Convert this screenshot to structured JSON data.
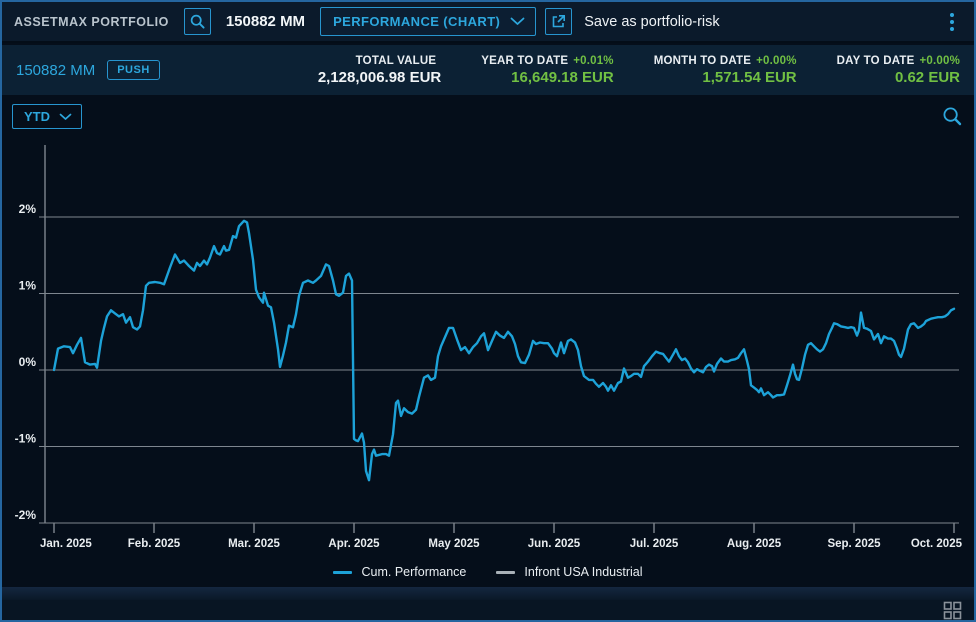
{
  "top_bar": {
    "app_title": "ASSETMAX PORTFOLIO",
    "portfolio_id": "150882 MM",
    "view_selector_value": "PERFORMANCE (CHART)",
    "action_text": "Save as portfolio-risk"
  },
  "summary_bar": {
    "portfolio_name": "150882 MM",
    "push_badge_label": "PUSH",
    "stats": [
      {
        "label": "TOTAL VALUE",
        "pct": "",
        "value": "2,128,006.98 EUR",
        "value_color": "#f2f5f7"
      },
      {
        "label": "YEAR TO DATE",
        "pct": "+0.01%",
        "value": "16,649.18 EUR",
        "value_color": "#71c043"
      },
      {
        "label": "MONTH TO DATE",
        "pct": "+0.00%",
        "value": "1,571.54 EUR",
        "value_color": "#71c043"
      },
      {
        "label": "DAY TO DATE",
        "pct": "+0.00%",
        "value": "0.62 EUR",
        "value_color": "#71c043"
      }
    ]
  },
  "chart_toolbar": {
    "range_selector_value": "YTD"
  },
  "colors": {
    "accent_cyan": "#2da7dd",
    "line_cyan": "#1da2d8",
    "positive_green": "#71c043",
    "grid_gray": "#7e868f",
    "tick_text": "#e9edf0"
  },
  "chart_data": {
    "type": "line",
    "title": "",
    "xlabel": "",
    "ylabel": "",
    "x_unit": "month (fraction, 0 = Jan 2025)",
    "y_unit": "percent",
    "x_tick_labels": [
      "Jan. 2025",
      "Feb. 2025",
      "Mar. 2025",
      "Apr. 2025",
      "May 2025",
      "Jun. 2025",
      "Jul. 2025",
      "Aug. 2025",
      "Sep. 2025",
      "Oct. 2025"
    ],
    "y_ticks": [
      2,
      1,
      0,
      -1,
      -2
    ],
    "y_tick_labels": [
      "2%",
      "1%",
      "0%",
      "-1%",
      "-2%"
    ],
    "ylim": [
      -2,
      2.94
    ],
    "xlim": [
      0,
      9.05
    ],
    "grid": true,
    "legend_position": "bottom",
    "series": [
      {
        "name": "Cum. Performance",
        "color": "#1da2d8",
        "points": [
          [
            0.0,
            0.0
          ],
          [
            0.04,
            0.28
          ],
          [
            0.1,
            0.31
          ],
          [
            0.16,
            0.3
          ],
          [
            0.19,
            0.22
          ],
          [
            0.23,
            0.33
          ],
          [
            0.27,
            0.42
          ],
          [
            0.31,
            0.1
          ],
          [
            0.36,
            0.07
          ],
          [
            0.41,
            0.08
          ],
          [
            0.43,
            0.03
          ],
          [
            0.47,
            0.38
          ],
          [
            0.5,
            0.55
          ],
          [
            0.53,
            0.7
          ],
          [
            0.57,
            0.78
          ],
          [
            0.61,
            0.74
          ],
          [
            0.65,
            0.7
          ],
          [
            0.69,
            0.73
          ],
          [
            0.72,
            0.62
          ],
          [
            0.76,
            0.69
          ],
          [
            0.79,
            0.56
          ],
          [
            0.83,
            0.53
          ],
          [
            0.86,
            0.57
          ],
          [
            0.89,
            0.78
          ],
          [
            0.92,
            1.1
          ],
          [
            0.95,
            1.14
          ],
          [
            1.01,
            1.15
          ],
          [
            1.06,
            1.14
          ],
          [
            1.1,
            1.12
          ],
          [
            1.16,
            1.34
          ],
          [
            1.21,
            1.51
          ],
          [
            1.26,
            1.4
          ],
          [
            1.3,
            1.43
          ],
          [
            1.35,
            1.36
          ],
          [
            1.4,
            1.3
          ],
          [
            1.43,
            1.4
          ],
          [
            1.46,
            1.36
          ],
          [
            1.5,
            1.43
          ],
          [
            1.53,
            1.38
          ],
          [
            1.56,
            1.47
          ],
          [
            1.6,
            1.62
          ],
          [
            1.63,
            1.53
          ],
          [
            1.66,
            1.51
          ],
          [
            1.7,
            1.62
          ],
          [
            1.72,
            1.56
          ],
          [
            1.75,
            1.57
          ],
          [
            1.79,
            1.75
          ],
          [
            1.82,
            1.73
          ],
          [
            1.85,
            1.88
          ],
          [
            1.9,
            1.95
          ],
          [
            1.93,
            1.93
          ],
          [
            1.95,
            1.79
          ],
          [
            1.99,
            1.44
          ],
          [
            2.02,
            1.05
          ],
          [
            2.05,
            0.95
          ],
          [
            2.09,
            0.88
          ],
          [
            2.1,
            1.01
          ],
          [
            2.14,
            0.84
          ],
          [
            2.17,
            0.82
          ],
          [
            2.2,
            0.62
          ],
          [
            2.24,
            0.27
          ],
          [
            2.26,
            0.04
          ],
          [
            2.29,
            0.19
          ],
          [
            2.32,
            0.36
          ],
          [
            2.35,
            0.58
          ],
          [
            2.39,
            0.56
          ],
          [
            2.42,
            0.73
          ],
          [
            2.45,
            0.97
          ],
          [
            2.49,
            1.14
          ],
          [
            2.54,
            1.17
          ],
          [
            2.59,
            1.14
          ],
          [
            2.62,
            1.17
          ],
          [
            2.67,
            1.23
          ],
          [
            2.72,
            1.38
          ],
          [
            2.75,
            1.36
          ],
          [
            2.79,
            1.17
          ],
          [
            2.82,
            0.99
          ],
          [
            2.85,
            0.97
          ],
          [
            2.89,
            1.01
          ],
          [
            2.92,
            1.23
          ],
          [
            2.95,
            1.26
          ],
          [
            2.98,
            1.17
          ],
          [
            3.0,
            -0.9
          ],
          [
            3.02,
            -0.92
          ],
          [
            3.04,
            -0.93
          ],
          [
            3.08,
            -0.83
          ],
          [
            3.1,
            -0.95
          ],
          [
            3.12,
            -1.32
          ],
          [
            3.15,
            -1.44
          ],
          [
            3.18,
            -1.1
          ],
          [
            3.2,
            -1.04
          ],
          [
            3.22,
            -1.12
          ],
          [
            3.28,
            -1.1
          ],
          [
            3.32,
            -1.1
          ],
          [
            3.35,
            -1.12
          ],
          [
            3.39,
            -0.84
          ],
          [
            3.42,
            -0.43
          ],
          [
            3.44,
            -0.4
          ],
          [
            3.47,
            -0.6
          ],
          [
            3.5,
            -0.5
          ],
          [
            3.54,
            -0.55
          ],
          [
            3.58,
            -0.57
          ],
          [
            3.62,
            -0.52
          ],
          [
            3.65,
            -0.35
          ],
          [
            3.7,
            -0.1
          ],
          [
            3.74,
            -0.07
          ],
          [
            3.77,
            -0.13
          ],
          [
            3.81,
            -0.1
          ],
          [
            3.84,
            0.18
          ],
          [
            3.87,
            0.31
          ],
          [
            3.91,
            0.43
          ],
          [
            3.95,
            0.55
          ],
          [
            3.99,
            0.55
          ],
          [
            4.03,
            0.4
          ],
          [
            4.07,
            0.26
          ],
          [
            4.11,
            0.3
          ],
          [
            4.15,
            0.22
          ],
          [
            4.19,
            0.3
          ],
          [
            4.23,
            0.35
          ],
          [
            4.27,
            0.44
          ],
          [
            4.3,
            0.48
          ],
          [
            4.34,
            0.26
          ],
          [
            4.38,
            0.38
          ],
          [
            4.42,
            0.5
          ],
          [
            4.46,
            0.45
          ],
          [
            4.5,
            0.42
          ],
          [
            4.54,
            0.5
          ],
          [
            4.58,
            0.44
          ],
          [
            4.61,
            0.34
          ],
          [
            4.64,
            0.18
          ],
          [
            4.67,
            0.1
          ],
          [
            4.71,
            0.09
          ],
          [
            4.75,
            0.2
          ],
          [
            4.79,
            0.38
          ],
          [
            4.82,
            0.34
          ],
          [
            4.86,
            0.36
          ],
          [
            4.9,
            0.35
          ],
          [
            4.94,
            0.35
          ],
          [
            4.98,
            0.28
          ],
          [
            5.0,
            0.22
          ],
          [
            5.03,
            0.18
          ],
          [
            5.07,
            0.36
          ],
          [
            5.1,
            0.22
          ],
          [
            5.14,
            0.38
          ],
          [
            5.17,
            0.4
          ],
          [
            5.21,
            0.36
          ],
          [
            5.24,
            0.26
          ],
          [
            5.27,
            0.05
          ],
          [
            5.3,
            -0.08
          ],
          [
            5.35,
            -0.13
          ],
          [
            5.39,
            -0.13
          ],
          [
            5.42,
            -0.18
          ],
          [
            5.45,
            -0.22
          ],
          [
            5.49,
            -0.17
          ],
          [
            5.52,
            -0.22
          ],
          [
            5.54,
            -0.27
          ],
          [
            5.57,
            -0.2
          ],
          [
            5.6,
            -0.27
          ],
          [
            5.64,
            -0.17
          ],
          [
            5.67,
            -0.15
          ],
          [
            5.7,
            0.02
          ],
          [
            5.74,
            -0.1
          ],
          [
            5.77,
            -0.08
          ],
          [
            5.8,
            -0.05
          ],
          [
            5.84,
            -0.05
          ],
          [
            5.87,
            -0.09
          ],
          [
            5.9,
            0.05
          ],
          [
            5.94,
            0.11
          ],
          [
            5.98,
            0.18
          ],
          [
            6.02,
            0.24
          ],
          [
            6.06,
            0.22
          ],
          [
            6.09,
            0.21
          ],
          [
            6.12,
            0.16
          ],
          [
            6.15,
            0.11
          ],
          [
            6.19,
            0.2
          ],
          [
            6.22,
            0.27
          ],
          [
            6.25,
            0.18
          ],
          [
            6.28,
            0.13
          ],
          [
            6.31,
            0.15
          ],
          [
            6.34,
            0.1
          ],
          [
            6.37,
            0.02
          ],
          [
            6.4,
            -0.03
          ],
          [
            6.43,
            0.01
          ],
          [
            6.46,
            -0.01
          ],
          [
            6.49,
            -0.03
          ],
          [
            6.52,
            0.04
          ],
          [
            6.55,
            0.07
          ],
          [
            6.58,
            0.05
          ],
          [
            6.6,
            -0.02
          ],
          [
            6.63,
            0.08
          ],
          [
            6.67,
            0.15
          ],
          [
            6.7,
            0.11
          ],
          [
            6.74,
            0.11
          ],
          [
            6.77,
            0.13
          ],
          [
            6.81,
            0.14
          ],
          [
            6.84,
            0.16
          ],
          [
            6.87,
            0.22
          ],
          [
            6.9,
            0.27
          ],
          [
            6.93,
            0.12
          ],
          [
            6.95,
            0.01
          ],
          [
            6.97,
            -0.2
          ],
          [
            7.0,
            -0.23
          ],
          [
            7.03,
            -0.26
          ],
          [
            7.05,
            -0.29
          ],
          [
            7.07,
            -0.24
          ],
          [
            7.1,
            -0.33
          ],
          [
            7.14,
            -0.29
          ],
          [
            7.17,
            -0.33
          ],
          [
            7.19,
            -0.36
          ],
          [
            7.23,
            -0.33
          ],
          [
            7.26,
            -0.33
          ],
          [
            7.3,
            -0.32
          ],
          [
            7.33,
            -0.2
          ],
          [
            7.36,
            -0.07
          ],
          [
            7.39,
            0.07
          ],
          [
            7.41,
            -0.05
          ],
          [
            7.43,
            -0.12
          ],
          [
            7.45,
            -0.13
          ],
          [
            7.48,
            0.02
          ],
          [
            7.51,
            0.2
          ],
          [
            7.54,
            0.33
          ],
          [
            7.57,
            0.35
          ],
          [
            7.6,
            0.31
          ],
          [
            7.63,
            0.27
          ],
          [
            7.66,
            0.24
          ],
          [
            7.69,
            0.27
          ],
          [
            7.72,
            0.35
          ],
          [
            7.75,
            0.47
          ],
          [
            7.78,
            0.55
          ],
          [
            7.8,
            0.61
          ],
          [
            7.83,
            0.6
          ],
          [
            7.87,
            0.57
          ],
          [
            7.91,
            0.56
          ],
          [
            7.94,
            0.55
          ],
          [
            7.97,
            0.56
          ],
          [
            8.0,
            0.55
          ],
          [
            8.03,
            0.45
          ],
          [
            8.05,
            0.52
          ],
          [
            8.07,
            0.75
          ],
          [
            8.1,
            0.55
          ],
          [
            8.13,
            0.54
          ],
          [
            8.17,
            0.51
          ],
          [
            8.2,
            0.4
          ],
          [
            8.24,
            0.47
          ],
          [
            8.27,
            0.35
          ],
          [
            8.3,
            0.44
          ],
          [
            8.34,
            0.41
          ],
          [
            8.37,
            0.41
          ],
          [
            8.4,
            0.38
          ],
          [
            8.43,
            0.28
          ],
          [
            8.45,
            0.2
          ],
          [
            8.47,
            0.17
          ],
          [
            8.5,
            0.28
          ],
          [
            8.54,
            0.53
          ],
          [
            8.57,
            0.6
          ],
          [
            8.6,
            0.61
          ],
          [
            8.64,
            0.55
          ],
          [
            8.67,
            0.57
          ],
          [
            8.7,
            0.6
          ],
          [
            8.72,
            0.64
          ],
          [
            8.77,
            0.67
          ],
          [
            8.8,
            0.68
          ],
          [
            8.84,
            0.69
          ],
          [
            8.88,
            0.69
          ],
          [
            8.91,
            0.7
          ],
          [
            8.94,
            0.73
          ],
          [
            8.97,
            0.78
          ],
          [
            9.0,
            0.8
          ]
        ]
      },
      {
        "name": "Infront USA Industrial",
        "color": "#a9b1b8",
        "points": []
      }
    ]
  }
}
